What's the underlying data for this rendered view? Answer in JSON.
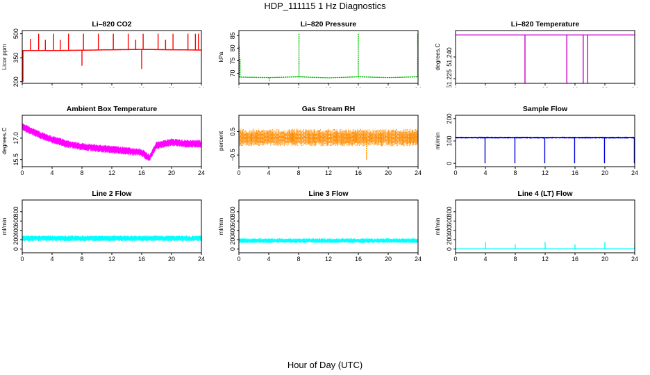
{
  "figure": {
    "title": "HDP_111115  1 Hz Diagnostics",
    "x_label": "Hour of Day (UTC)"
  },
  "chart_data": [
    {
      "type": "line",
      "title": "Li–820 CO2",
      "ylabel": "Licor ppm",
      "color": "#ff0000",
      "xlim": [
        0,
        24
      ],
      "ylim": [
        190,
        520
      ],
      "yticks": [
        200,
        350,
        500
      ],
      "ytick_labels": [
        "200",
        "350",
        "500"
      ],
      "xticks": [
        0,
        4,
        8,
        12,
        16,
        20,
        24
      ],
      "xtick_labels": [
        "0",
        "4",
        "8",
        "12",
        "16",
        "20",
        "24"
      ],
      "baseline": [
        [
          0,
          395
        ],
        [
          4,
          395
        ],
        [
          8,
          397
        ],
        [
          12,
          400
        ],
        [
          16,
          402
        ],
        [
          20,
          400
        ],
        [
          24,
          398
        ]
      ],
      "noise": 6,
      "spikes": [
        [
          0.1,
          200
        ],
        [
          1.1,
          468
        ],
        [
          2.2,
          500
        ],
        [
          3.1,
          462
        ],
        [
          4.2,
          500
        ],
        [
          5.1,
          462
        ],
        [
          6.2,
          500
        ],
        [
          8.2,
          500
        ],
        [
          8.0,
          300
        ],
        [
          10.2,
          500
        ],
        [
          12.2,
          500
        ],
        [
          14.2,
          500
        ],
        [
          15.2,
          462
        ],
        [
          16.2,
          500
        ],
        [
          16.0,
          280
        ],
        [
          18.2,
          500
        ],
        [
          19.2,
          462
        ],
        [
          20.2,
          500
        ],
        [
          22.2,
          500
        ],
        [
          23.2,
          500
        ],
        [
          23.6,
          500
        ]
      ]
    },
    {
      "type": "line",
      "title": "Li–820 Pressure",
      "ylabel": "kPa",
      "color": "#00c000",
      "dotted": true,
      "xlim": [
        0,
        24
      ],
      "ylim": [
        66,
        87
      ],
      "yticks": [
        70,
        75,
        80,
        85
      ],
      "ytick_labels": [
        "70",
        "75",
        "80",
        "85"
      ],
      "xticks": [
        0,
        4,
        8,
        12,
        16,
        20,
        24
      ],
      "xtick_labels": [
        "0",
        "4",
        "8",
        "12",
        "16",
        "20",
        "24"
      ],
      "baseline": [
        [
          0,
          68.5
        ],
        [
          4,
          68.3
        ],
        [
          8,
          68.6
        ],
        [
          12,
          68.2
        ],
        [
          16,
          68.6
        ],
        [
          20,
          68.3
        ],
        [
          24,
          68.6
        ]
      ],
      "noise": 0.15,
      "spikes": [
        [
          0.05,
          81
        ],
        [
          0.15,
          76
        ],
        [
          4.1,
          67
        ],
        [
          8.05,
          86
        ],
        [
          16.0,
          86
        ],
        [
          23.95,
          86
        ]
      ]
    },
    {
      "type": "line",
      "title": "Li–820 Temperature",
      "ylabel": "degrees.C",
      "color": "#cc00cc",
      "xlim": [
        0,
        24
      ],
      "ylim": [
        51.222,
        51.258
      ],
      "yticks": [
        51.225,
        51.24
      ],
      "ytick_labels": [
        "51.225",
        "51.240"
      ],
      "xticks": [
        0,
        4,
        8,
        12,
        16,
        20,
        24
      ],
      "xtick_labels": [
        "0",
        "4",
        "8",
        "12",
        "16",
        "20",
        "24"
      ],
      "baseline": [
        [
          0,
          51.255
        ],
        [
          24,
          51.255
        ]
      ],
      "noise": 0,
      "spikes": [
        [
          9.3,
          51.222
        ],
        [
          14.9,
          51.222
        ],
        [
          17.1,
          51.222
        ],
        [
          17.7,
          51.222
        ]
      ]
    },
    {
      "type": "line",
      "title": "Ambient Box Temperature",
      "ylabel": "degrees.C",
      "color": "#ff00ff",
      "xlim": [
        0,
        24
      ],
      "ylim": [
        15.0,
        18.6
      ],
      "yticks": [
        15.5,
        17.0
      ],
      "ytick_labels": [
        "15.5",
        "17.0"
      ],
      "xticks": [
        0,
        4,
        8,
        12,
        16,
        20,
        24
      ],
      "xtick_labels": [
        "0",
        "4",
        "8",
        "12",
        "16",
        "20",
        "24"
      ],
      "baseline": [
        [
          0,
          17.8
        ],
        [
          2,
          17.3
        ],
        [
          4,
          16.9
        ],
        [
          6,
          16.6
        ],
        [
          8,
          16.4
        ],
        [
          10,
          16.3
        ],
        [
          12,
          16.2
        ],
        [
          14,
          16.1
        ],
        [
          16,
          16.0
        ],
        [
          17,
          15.6
        ],
        [
          18,
          16.5
        ],
        [
          20,
          16.7
        ],
        [
          22,
          16.6
        ],
        [
          24,
          16.6
        ]
      ],
      "noise": 0.55,
      "spikes": []
    },
    {
      "type": "line",
      "title": "Gas Stream RH",
      "ylabel": "percent",
      "color": "#ff8c00",
      "dotted": true,
      "xlim": [
        0,
        24
      ],
      "ylim": [
        -1.0,
        1.2
      ],
      "yticks": [
        -0.5,
        0.5
      ],
      "ytick_labels": [
        "−0.5",
        "0.5"
      ],
      "xticks": [
        0,
        4,
        8,
        12,
        16,
        20,
        24
      ],
      "xtick_labels": [
        "0",
        "4",
        "8",
        "12",
        "16",
        "20",
        "24"
      ],
      "baseline": [
        [
          0,
          0.25
        ],
        [
          24,
          0.25
        ]
      ],
      "noise": 0.75,
      "spikes": [
        [
          17.1,
          -0.7
        ]
      ]
    },
    {
      "type": "line",
      "title": "Sample Flow",
      "ylabel": "ml/min",
      "color": "#0000dd",
      "xlim": [
        0,
        24
      ],
      "ylim": [
        -15,
        215
      ],
      "yticks": [
        0,
        100,
        200
      ],
      "ytick_labels": [
        "0",
        "100",
        "200"
      ],
      "xticks": [
        0,
        4,
        8,
        12,
        16,
        20,
        24
      ],
      "xtick_labels": [
        "0",
        "4",
        "8",
        "12",
        "16",
        "20",
        "24"
      ],
      "baseline": [
        [
          0,
          115
        ],
        [
          24,
          115
        ]
      ],
      "noise": 8,
      "spikes": [
        [
          3.95,
          0
        ],
        [
          7.95,
          0
        ],
        [
          11.95,
          0
        ],
        [
          15.95,
          0
        ],
        [
          19.95,
          0
        ],
        [
          23.95,
          0
        ]
      ]
    },
    {
      "type": "line",
      "title": "Line 2 Flow",
      "ylabel": "ml/min",
      "color": "#00ffff",
      "xlim": [
        0,
        24
      ],
      "ylim": [
        -80,
        1050
      ],
      "yticks": [
        0,
        200,
        400,
        600,
        800
      ],
      "ytick_labels": [
        "0",
        "200",
        "400",
        "600",
        "800"
      ],
      "xticks": [
        0,
        4,
        8,
        12,
        16,
        20,
        24
      ],
      "xtick_labels": [
        "0",
        "4",
        "8",
        "12",
        "16",
        "20",
        "24"
      ],
      "baseline": [
        [
          0,
          230
        ],
        [
          24,
          230
        ]
      ],
      "noise": 120,
      "spikes": []
    },
    {
      "type": "line",
      "title": "Line 3 Flow",
      "ylabel": "ml/min",
      "color": "#00ffff",
      "xlim": [
        0,
        24
      ],
      "ylim": [
        -80,
        1050
      ],
      "yticks": [
        0,
        200,
        400,
        600,
        800
      ],
      "ytick_labels": [
        "0",
        "200",
        "400",
        "600",
        "800"
      ],
      "xticks": [
        0,
        4,
        8,
        12,
        16,
        20,
        24
      ],
      "xtick_labels": [
        "0",
        "4",
        "8",
        "12",
        "16",
        "20",
        "24"
      ],
      "baseline": [
        [
          0,
          180
        ],
        [
          24,
          180
        ]
      ],
      "noise": 100,
      "spikes": []
    },
    {
      "type": "line",
      "title": "Line 4 (LT) Flow",
      "ylabel": "ml/min",
      "color": "#00ffff",
      "xlim": [
        0,
        24
      ],
      "ylim": [
        -80,
        1050
      ],
      "yticks": [
        0,
        200,
        400,
        600,
        800
      ],
      "ytick_labels": [
        "0",
        "200",
        "400",
        "600",
        "800"
      ],
      "xticks": [
        0,
        4,
        8,
        12,
        16,
        20,
        24
      ],
      "xtick_labels": [
        "0",
        "4",
        "8",
        "12",
        "16",
        "20",
        "24"
      ],
      "baseline": [
        [
          0,
          5
        ],
        [
          24,
          5
        ]
      ],
      "noise": 0,
      "spikes": [
        [
          4.0,
          150
        ],
        [
          8.0,
          100
        ],
        [
          12.0,
          150
        ],
        [
          16.0,
          100
        ],
        [
          20.0,
          150
        ],
        [
          24.0,
          100
        ]
      ]
    }
  ]
}
